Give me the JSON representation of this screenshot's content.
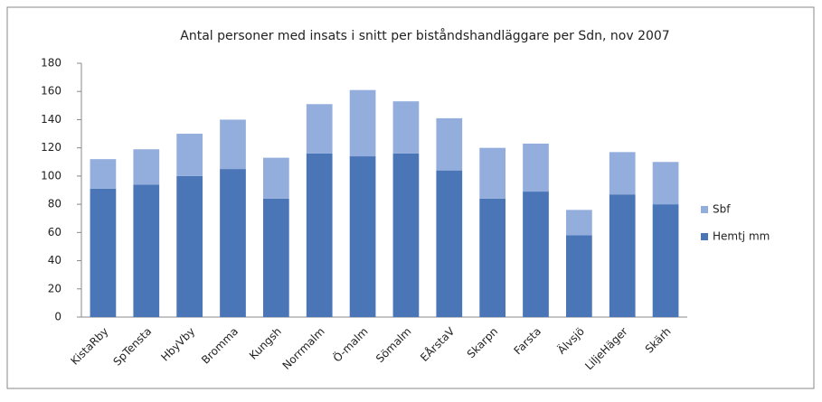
{
  "chart_data": {
    "type": "stacked_bar",
    "title": "Antal personer med insats i snitt per biståndshandläggare per Sdn, nov 2007",
    "categories": [
      "KistaRby",
      "SpTensta",
      "HbyVby",
      "Bromma",
      "Kungsh",
      "Norrmalm",
      "Ö-malm",
      "Sömalm",
      "EÅrstaV",
      "Skarpn",
      "Farsta",
      "Älvsjö",
      "LiljeHäger",
      "Skärh"
    ],
    "series": [
      {
        "name": "Hemtj mm",
        "color": "#4a76b8",
        "values": [
          91,
          94,
          100,
          105,
          84,
          116,
          114,
          116,
          104,
          84,
          89,
          58,
          87,
          80
        ]
      },
      {
        "name": "Sbf",
        "color": "#93aedc",
        "values": [
          21,
          25,
          30,
          35,
          29,
          35,
          47,
          37,
          37,
          36,
          34,
          18,
          30,
          30
        ]
      }
    ],
    "ylim": [
      0,
      180
    ],
    "yticks": [
      0,
      20,
      40,
      60,
      80,
      100,
      120,
      140,
      160,
      180
    ],
    "grid": false
  }
}
